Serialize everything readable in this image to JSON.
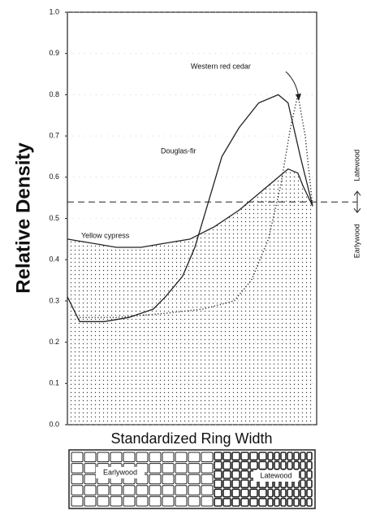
{
  "chart_data": {
    "type": "line",
    "y_label": "Relative Density",
    "x_label": "Standardized Ring Width",
    "xlim": [
      0,
      100
    ],
    "ylim": [
      0,
      1
    ],
    "yticks": [
      {
        "value": 0,
        "label": "0.0"
      },
      0.1,
      0.2,
      0.3,
      0.4,
      0.5,
      0.6,
      0.7,
      0.8,
      0.9,
      {
        "value": 1,
        "label": "1.0"
      }
    ],
    "series": [
      {
        "name": "Yellow cypress",
        "color": "#222",
        "style": "solid",
        "fill": true,
        "x": [
          0,
          10,
          20,
          30,
          40,
          50,
          60,
          70,
          80,
          88,
          90,
          94,
          96,
          100
        ],
        "values": [
          0.45,
          0.44,
          0.43,
          0.43,
          0.44,
          0.45,
          0.48,
          0.52,
          0.57,
          0.61,
          0.62,
          0.61,
          0.58,
          0.53
        ]
      },
      {
        "name": "Douglas-fir",
        "color": "#222",
        "style": "solid",
        "fill": false,
        "x": [
          0,
          5,
          15,
          25,
          30,
          35,
          40,
          47,
          52,
          58,
          63,
          70,
          78,
          86,
          90,
          95,
          100
        ],
        "values": [
          0.31,
          0.25,
          0.25,
          0.26,
          0.27,
          0.28,
          0.31,
          0.36,
          0.43,
          0.55,
          0.65,
          0.72,
          0.78,
          0.8,
          0.78,
          0.65,
          0.53
        ]
      },
      {
        "name": "Western red cedar",
        "color": "#222",
        "style": "dotted",
        "fill": false,
        "x": [
          5,
          20,
          40,
          55,
          68,
          75,
          82,
          87,
          91,
          94,
          97,
          100
        ],
        "values": [
          0.26,
          0.26,
          0.27,
          0.28,
          0.3,
          0.35,
          0.45,
          0.58,
          0.72,
          0.8,
          0.7,
          0.53
        ]
      }
    ],
    "reference_line": {
      "value": 0.54,
      "style": "dashed",
      "labels": [
        "Earlywood",
        "Latewood"
      ]
    },
    "cell_diagram": {
      "labels": [
        "Earlywood",
        "Latewood"
      ]
    }
  }
}
